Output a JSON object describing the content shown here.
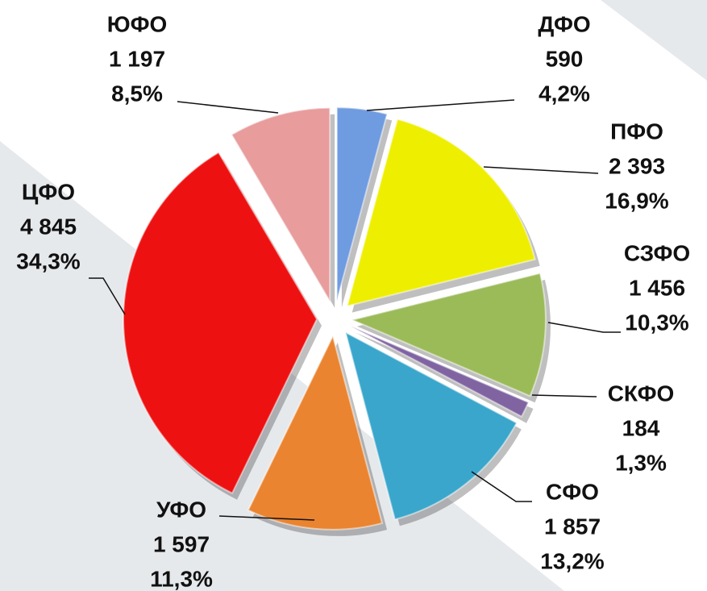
{
  "chart_data": {
    "type": "pie",
    "categories": [
      "ДФО",
      "ПФО",
      "СЗФО",
      "СКФО",
      "СФО",
      "УФО",
      "ЦФО",
      "ЮФО"
    ],
    "values": [
      590,
      2393,
      1456,
      184,
      1857,
      1597,
      4845,
      1197
    ],
    "value_labels": [
      "590",
      "2 393",
      "1 456",
      "184",
      "1 857",
      "1 597",
      "4 845",
      "1 197"
    ],
    "percentages": [
      4.2,
      16.9,
      10.3,
      1.3,
      13.2,
      11.3,
      34.3,
      8.5
    ],
    "percentage_labels": [
      "4,2%",
      "16,9%",
      "10,3%",
      "1,3%",
      "13,2%",
      "11,3%",
      "34,3%",
      "8,5%"
    ],
    "colors": [
      "#6f9be0",
      "#eeee00",
      "#9bbb59",
      "#8064a2",
      "#3aa6cc",
      "#ea8430",
      "#ee1111",
      "#e89c9c"
    ]
  }
}
